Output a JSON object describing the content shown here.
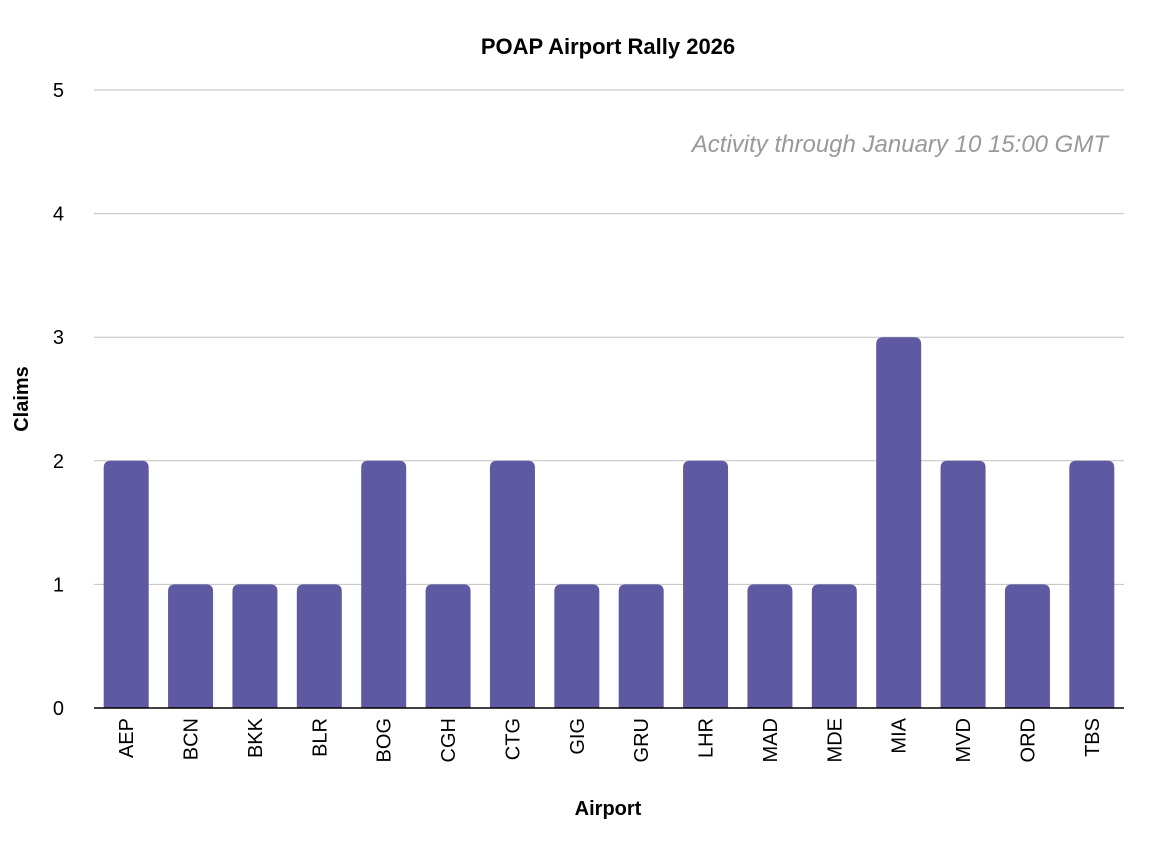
{
  "chart_data": {
    "type": "bar",
    "title": "POAP Airport Rally 2026",
    "annotation": "Activity through January 10 15:00 GMT",
    "xlabel": "Airport",
    "ylabel": "Claims",
    "ylim": [
      0,
      5
    ],
    "yticks": [
      "0",
      "1",
      "2",
      "3",
      "4",
      "5"
    ],
    "grid": true,
    "categories": [
      "AEP",
      "BCN",
      "BKK",
      "BLR",
      "BOG",
      "CGH",
      "CTG",
      "GIG",
      "GRU",
      "LHR",
      "MAD",
      "MDE",
      "MIA",
      "MVD",
      "ORD",
      "TBS"
    ],
    "values": [
      2,
      1,
      1,
      1,
      2,
      1,
      2,
      1,
      1,
      2,
      1,
      1,
      3,
      2,
      1,
      2
    ],
    "colors": {
      "bar": "#5e59a0",
      "grid": "#c0c0c0",
      "axis": "#000000"
    }
  }
}
